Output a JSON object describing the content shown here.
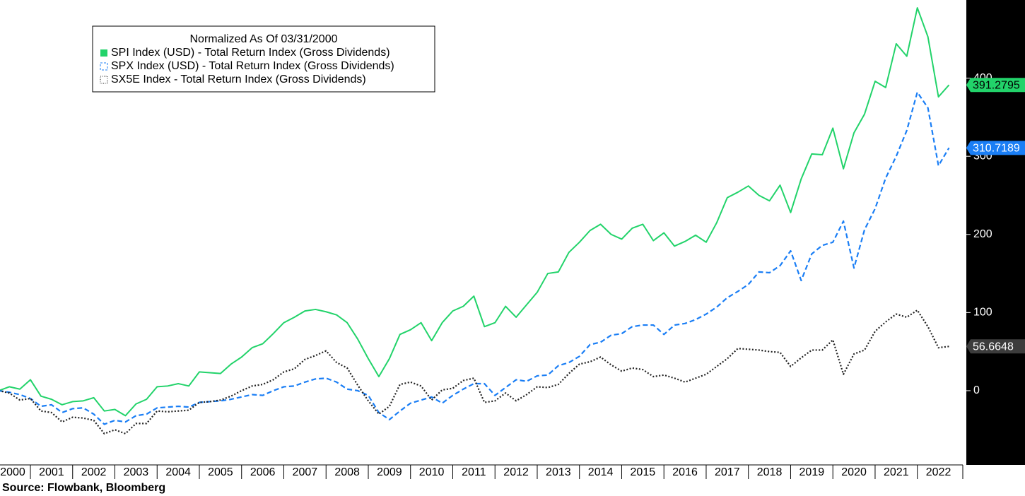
{
  "chart_data": {
    "type": "line",
    "legend_title": "Normalized As Of 03/31/2000",
    "legend": "upper-left",
    "source": "Source: Flowbank, Bloomberg",
    "x": [
      2000.25,
      2000.5,
      2000.75,
      2001,
      2001.25,
      2001.5,
      2001.75,
      2002,
      2002.25,
      2002.5,
      2002.75,
      2003,
      2003.25,
      2003.5,
      2003.75,
      2004,
      2004.25,
      2004.5,
      2004.75,
      2005,
      2005.25,
      2005.5,
      2005.75,
      2006,
      2006.25,
      2006.5,
      2006.75,
      2007,
      2007.25,
      2007.5,
      2007.75,
      2008,
      2008.25,
      2008.5,
      2008.75,
      2009,
      2009.25,
      2009.5,
      2009.75,
      2010,
      2010.25,
      2010.5,
      2010.75,
      2011,
      2011.25,
      2011.5,
      2011.75,
      2012,
      2012.25,
      2012.5,
      2012.75,
      2013,
      2013.25,
      2013.5,
      2013.75,
      2014,
      2014.25,
      2014.5,
      2014.75,
      2015,
      2015.25,
      2015.5,
      2015.75,
      2016,
      2016.25,
      2016.5,
      2016.75,
      2017,
      2017.25,
      2017.5,
      2017.75,
      2018,
      2018.25,
      2018.5,
      2018.75,
      2019,
      2019.25,
      2019.5,
      2019.75,
      2020,
      2020.25,
      2020.5,
      2020.75,
      2021,
      2021.25,
      2021.5,
      2021.75,
      2022,
      2022.25,
      2022.5,
      2022.75
    ],
    "series": [
      {
        "name": "SPI Index (USD) - Total Return Index (Gross Dividends)",
        "color": "#22d36a",
        "style": "solid",
        "values": [
          0,
          5,
          2,
          14,
          -7,
          -11,
          -18,
          -14,
          -13,
          -9,
          -26,
          -24,
          -32,
          -17,
          -11,
          5,
          6,
          9,
          6,
          24,
          23,
          22,
          34,
          43,
          55,
          60,
          73,
          87,
          94,
          102,
          104,
          101,
          97,
          87,
          66,
          41,
          18,
          41,
          72,
          78,
          87,
          64,
          87,
          102,
          108,
          121,
          82,
          87,
          108,
          94,
          110,
          126,
          150,
          152,
          177,
          190,
          205,
          213,
          200,
          194,
          208,
          213,
          192,
          202,
          185,
          191,
          199,
          190,
          215,
          247,
          254,
          262,
          250,
          243,
          263,
          228,
          271,
          303,
          302,
          336,
          284,
          330,
          354,
          396,
          388,
          444,
          428,
          490,
          453,
          376,
          391.2795
        ]
      },
      {
        "name": "SPX Index (USD) - Total Return Index (Gross Dividends)",
        "color": "#1a7ef5",
        "style": "dashed",
        "values": [
          0,
          -2,
          -5,
          -10,
          -20,
          -18,
          -28,
          -23,
          -22,
          -30,
          -43,
          -38,
          -40,
          -32,
          -30,
          -22,
          -21,
          -20,
          -21,
          -15,
          -14,
          -13,
          -11,
          -8,
          -5,
          -6,
          0,
          5,
          6,
          11,
          15,
          16,
          11,
          2,
          0,
          -6,
          -28,
          -37,
          -26,
          -16,
          -12,
          -8,
          -16,
          -6,
          2,
          9,
          9,
          -6,
          4,
          14,
          12,
          19,
          20,
          32,
          36,
          44,
          59,
          62,
          71,
          73,
          82,
          84,
          84,
          72,
          84,
          86,
          91,
          98,
          107,
          119,
          127,
          136,
          152,
          151,
          160,
          179,
          141,
          175,
          186,
          190,
          217,
          157,
          206,
          233,
          272,
          300,
          333,
          382,
          362,
          288,
          310.7189
        ]
      },
      {
        "name": "SX5E Index - Total Return Index (Gross Dividends)",
        "color": "#222222",
        "style": "dotted",
        "values": [
          0,
          -3,
          -12,
          -10,
          -26,
          -28,
          -40,
          -34,
          -35,
          -38,
          -55,
          -50,
          -55,
          -42,
          -42,
          -26,
          -27,
          -26,
          -25,
          -15,
          -14,
          -12,
          -7,
          0,
          6,
          8,
          14,
          24,
          28,
          40,
          45,
          51,
          36,
          29,
          7,
          -13,
          -30,
          -20,
          8,
          11,
          6,
          -12,
          1,
          3,
          13,
          16,
          -15,
          -13,
          -3,
          -13,
          -5,
          5,
          4,
          8,
          22,
          34,
          37,
          43,
          33,
          25,
          29,
          27,
          18,
          20,
          16,
          11,
          16,
          21,
          31,
          41,
          54,
          53,
          52,
          50,
          49,
          31,
          42,
          52,
          52,
          65,
          21,
          47,
          52,
          76,
          88,
          98,
          94,
          103,
          82,
          55,
          56.6648
        ]
      }
    ],
    "xlim": [
      2000.28,
      2023.16
    ],
    "xticks": [
      2000,
      2001,
      2002,
      2003,
      2004,
      2005,
      2006,
      2007,
      2008,
      2009,
      2010,
      2011,
      2012,
      2013,
      2014,
      2015,
      2016,
      2017,
      2018,
      2019,
      2020,
      2021,
      2022
    ],
    "ylim": [
      -95,
      500
    ],
    "yticks": [
      0,
      100,
      200,
      300,
      400
    ]
  }
}
